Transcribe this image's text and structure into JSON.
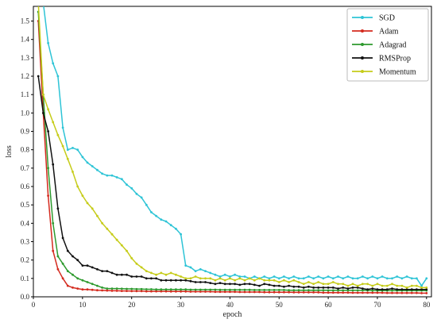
{
  "chart_data": {
    "type": "line",
    "xlabel": "epoch",
    "ylabel": "loss",
    "xlim": [
      0,
      81
    ],
    "ylim": [
      0,
      1.58
    ],
    "xticks": [
      0,
      10,
      20,
      30,
      40,
      50,
      60,
      70,
      80
    ],
    "yticks": [
      0.0,
      0.1,
      0.2,
      0.3,
      0.4,
      0.5,
      0.6,
      0.7,
      0.8,
      0.9,
      1.0,
      1.1,
      1.2,
      1.3,
      1.4,
      1.5
    ],
    "grid": false,
    "legend_position": "top-right",
    "x": [
      1,
      2,
      3,
      4,
      5,
      6,
      7,
      8,
      9,
      10,
      11,
      12,
      13,
      14,
      15,
      16,
      17,
      18,
      19,
      20,
      21,
      22,
      23,
      24,
      25,
      26,
      27,
      28,
      29,
      30,
      31,
      32,
      33,
      34,
      35,
      36,
      37,
      38,
      39,
      40,
      41,
      42,
      43,
      44,
      45,
      46,
      47,
      48,
      49,
      50,
      51,
      52,
      53,
      54,
      55,
      56,
      57,
      58,
      59,
      60,
      61,
      62,
      63,
      64,
      65,
      66,
      67,
      68,
      69,
      70,
      71,
      72,
      73,
      74,
      75,
      76,
      77,
      78,
      79,
      80
    ],
    "series": [
      {
        "name": "SGD",
        "color": "#2ec4d6",
        "values": [
          1.6,
          1.6,
          1.38,
          1.27,
          1.2,
          0.92,
          0.8,
          0.81,
          0.8,
          0.76,
          0.73,
          0.71,
          0.69,
          0.67,
          0.66,
          0.66,
          0.65,
          0.64,
          0.61,
          0.59,
          0.56,
          0.54,
          0.5,
          0.46,
          0.44,
          0.42,
          0.41,
          0.39,
          0.37,
          0.34,
          0.17,
          0.16,
          0.14,
          0.15,
          0.14,
          0.13,
          0.12,
          0.11,
          0.12,
          0.11,
          0.12,
          0.11,
          0.11,
          0.1,
          0.11,
          0.1,
          0.11,
          0.1,
          0.11,
          0.1,
          0.11,
          0.1,
          0.11,
          0.1,
          0.1,
          0.11,
          0.1,
          0.11,
          0.1,
          0.11,
          0.1,
          0.11,
          0.1,
          0.11,
          0.1,
          0.1,
          0.11,
          0.1,
          0.11,
          0.1,
          0.11,
          0.1,
          0.1,
          0.11,
          0.1,
          0.11,
          0.1,
          0.1,
          0.06,
          0.1
        ]
      },
      {
        "name": "Adam",
        "color": "#d42a1e",
        "values": [
          1.5,
          1.0,
          0.55,
          0.25,
          0.15,
          0.1,
          0.06,
          0.05,
          0.045,
          0.04,
          0.04,
          0.038,
          0.036,
          0.035,
          0.034,
          0.033,
          0.033,
          0.032,
          0.032,
          0.031,
          0.031,
          0.031,
          0.03,
          0.03,
          0.03,
          0.03,
          0.03,
          0.029,
          0.029,
          0.029,
          0.029,
          0.028,
          0.028,
          0.028,
          0.028,
          0.028,
          0.027,
          0.027,
          0.027,
          0.027,
          0.027,
          0.026,
          0.026,
          0.026,
          0.026,
          0.026,
          0.025,
          0.025,
          0.025,
          0.025,
          0.025,
          0.025,
          0.024,
          0.024,
          0.024,
          0.024,
          0.024,
          0.024,
          0.023,
          0.023,
          0.023,
          0.023,
          0.023,
          0.023,
          0.022,
          0.022,
          0.022,
          0.022,
          0.022,
          0.022,
          0.022,
          0.021,
          0.021,
          0.021,
          0.021,
          0.021,
          0.021,
          0.021,
          0.02,
          0.02
        ]
      },
      {
        "name": "Adagrad",
        "color": "#2e9a2e",
        "values": [
          1.55,
          1.1,
          0.7,
          0.4,
          0.22,
          0.18,
          0.14,
          0.12,
          0.1,
          0.09,
          0.08,
          0.07,
          0.06,
          0.05,
          0.045,
          0.045,
          0.045,
          0.044,
          0.043,
          0.043,
          0.042,
          0.042,
          0.041,
          0.041,
          0.04,
          0.04,
          0.04,
          0.04,
          0.04,
          0.04,
          0.04,
          0.039,
          0.039,
          0.039,
          0.039,
          0.039,
          0.039,
          0.038,
          0.038,
          0.038,
          0.038,
          0.038,
          0.038,
          0.038,
          0.037,
          0.037,
          0.037,
          0.037,
          0.037,
          0.037,
          0.037,
          0.036,
          0.036,
          0.036,
          0.036,
          0.036,
          0.036,
          0.036,
          0.036,
          0.035,
          0.035,
          0.035,
          0.035,
          0.035,
          0.035,
          0.035,
          0.035,
          0.035,
          0.034,
          0.034,
          0.034,
          0.034,
          0.034,
          0.034,
          0.034,
          0.034,
          0.034,
          0.034,
          0.034,
          0.034
        ]
      },
      {
        "name": "RMSProp",
        "color": "#111111",
        "values": [
          1.2,
          1.0,
          0.9,
          0.72,
          0.48,
          0.32,
          0.25,
          0.22,
          0.2,
          0.17,
          0.17,
          0.16,
          0.15,
          0.14,
          0.14,
          0.13,
          0.12,
          0.12,
          0.12,
          0.11,
          0.11,
          0.11,
          0.1,
          0.1,
          0.1,
          0.09,
          0.09,
          0.09,
          0.09,
          0.09,
          0.09,
          0.085,
          0.08,
          0.08,
          0.08,
          0.075,
          0.07,
          0.075,
          0.07,
          0.07,
          0.07,
          0.065,
          0.07,
          0.07,
          0.065,
          0.06,
          0.07,
          0.065,
          0.06,
          0.06,
          0.055,
          0.06,
          0.055,
          0.055,
          0.05,
          0.055,
          0.05,
          0.05,
          0.05,
          0.05,
          0.05,
          0.045,
          0.05,
          0.045,
          0.05,
          0.05,
          0.045,
          0.04,
          0.045,
          0.04,
          0.04,
          0.04,
          0.045,
          0.04,
          0.04,
          0.04,
          0.04,
          0.04,
          0.04,
          0.04
        ]
      },
      {
        "name": "Momentum",
        "color": "#c6cc1a",
        "values": [
          1.6,
          1.1,
          1.02,
          0.95,
          0.88,
          0.82,
          0.75,
          0.68,
          0.6,
          0.55,
          0.51,
          0.48,
          0.44,
          0.4,
          0.37,
          0.34,
          0.31,
          0.28,
          0.25,
          0.21,
          0.18,
          0.16,
          0.14,
          0.13,
          0.12,
          0.13,
          0.12,
          0.13,
          0.12,
          0.11,
          0.1,
          0.1,
          0.11,
          0.1,
          0.1,
          0.1,
          0.09,
          0.1,
          0.09,
          0.1,
          0.09,
          0.1,
          0.09,
          0.1,
          0.09,
          0.1,
          0.09,
          0.09,
          0.09,
          0.08,
          0.09,
          0.08,
          0.09,
          0.08,
          0.07,
          0.08,
          0.07,
          0.08,
          0.07,
          0.07,
          0.08,
          0.07,
          0.07,
          0.06,
          0.07,
          0.06,
          0.07,
          0.07,
          0.06,
          0.07,
          0.06,
          0.06,
          0.07,
          0.06,
          0.06,
          0.05,
          0.06,
          0.06,
          0.05,
          0.05
        ]
      }
    ]
  }
}
